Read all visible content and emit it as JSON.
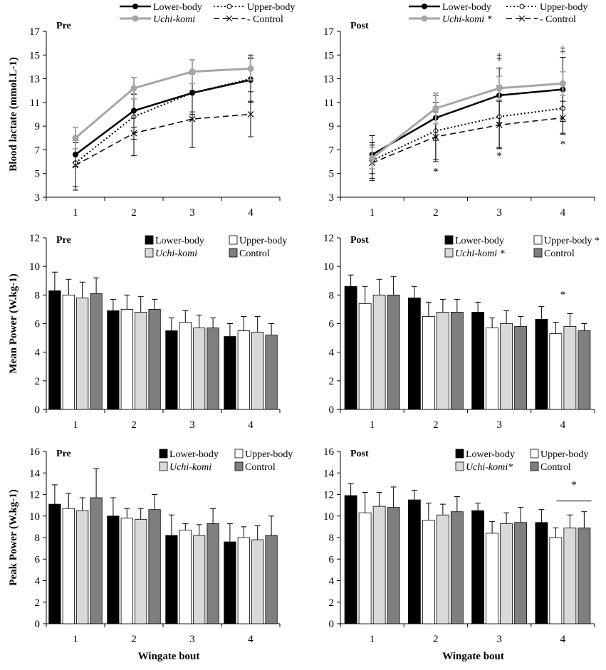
{
  "colors": {
    "lower": "#000000",
    "upper": "#ffffff",
    "uchi": "#d9d9d9",
    "control": "#7f7f7f",
    "uchiLine": "#a6a6a6",
    "axis": "#000000"
  },
  "legend_labels": {
    "lower": "Lower-body",
    "upper": "Upper-body",
    "uchi": "Uchi-komi",
    "control": "Control",
    "control_dash": "- Control",
    "star": "*"
  },
  "chart_data": [
    {
      "type": "line",
      "title": "Pre",
      "ylabel": "Blood lactate (mmol.L-1)",
      "xlabel": "",
      "ylim": [
        3,
        17
      ],
      "yticks": [
        3,
        5,
        7,
        9,
        11,
        13,
        15,
        17
      ],
      "categories": [
        "1",
        "2",
        "3",
        "4"
      ],
      "series": [
        {
          "key": "uchi",
          "name": "Uchi-komi",
          "values": [
            8.0,
            12.2,
            13.6,
            13.85
          ],
          "err": [
            0.9,
            0.9,
            1.0,
            0.95
          ]
        },
        {
          "key": "lower",
          "name": "Lower-body",
          "values": [
            6.6,
            10.3,
            11.8,
            12.9
          ],
          "err": [
            1.0,
            1.4,
            1.6,
            1.8
          ]
        },
        {
          "key": "upper",
          "name": "Upper-body",
          "values": [
            5.9,
            9.8,
            11.8,
            13.0
          ],
          "err": [
            2.0,
            1.9,
            1.8,
            2.0
          ]
        },
        {
          "key": "control",
          "name": "Control",
          "values": [
            5.7,
            8.4,
            9.6,
            10.0
          ],
          "err": [
            2.1,
            1.9,
            2.4,
            1.9
          ]
        }
      ],
      "annotations": []
    },
    {
      "type": "line",
      "title": "Post",
      "ylabel": "",
      "xlabel": "",
      "ylim": [
        3,
        17
      ],
      "yticks": [
        3,
        5,
        7,
        9,
        11,
        13,
        15,
        17
      ],
      "categories": [
        "1",
        "2",
        "3",
        "4"
      ],
      "series": [
        {
          "key": "uchi",
          "name": "Uchi-komi *",
          "values": [
            6.3,
            10.5,
            12.2,
            12.6
          ],
          "err": [
            0.9,
            1.3,
            1.0,
            1.0
          ]
        },
        {
          "key": "lower",
          "name": "Lower-body",
          "values": [
            6.6,
            9.7,
            11.6,
            12.1
          ],
          "err": [
            1.6,
            1.9,
            2.3,
            2.7
          ]
        },
        {
          "key": "upper",
          "name": "Upper-body",
          "values": [
            6.1,
            8.6,
            9.8,
            10.5
          ],
          "err": [
            1.5,
            2.4,
            2.6,
            2.1
          ]
        },
        {
          "key": "control",
          "name": "Control",
          "values": [
            5.9,
            8.1,
            9.1,
            9.7
          ],
          "err": [
            1.5,
            2.1,
            2.0,
            1.4
          ]
        }
      ],
      "annotations": [
        {
          "text": "‡",
          "x": 3,
          "y": 14.6
        },
        {
          "text": "‡",
          "x": 4,
          "y": 15.2
        },
        {
          "text": "*",
          "x": 2,
          "y": 4.9
        },
        {
          "text": "*",
          "x": 3,
          "y": 6.2
        },
        {
          "text": "*",
          "x": 4,
          "y": 7.2
        }
      ]
    },
    {
      "type": "bar",
      "title": "Pre",
      "ylabel": "Mean Power (W.kg-1)",
      "xlabel": "",
      "ylim": [
        0,
        12
      ],
      "yticks": [
        0,
        2,
        4,
        6,
        8,
        10,
        12
      ],
      "categories": [
        "1",
        "2",
        "3",
        "4"
      ],
      "series": [
        {
          "key": "lower",
          "name": "Lower-body",
          "values": [
            8.3,
            6.9,
            5.5,
            5.1
          ],
          "err": [
            1.3,
            0.8,
            0.9,
            0.9
          ]
        },
        {
          "key": "upper",
          "name": "Upper-body",
          "values": [
            8.0,
            7.0,
            6.1,
            5.5
          ],
          "err": [
            1.1,
            1.0,
            0.8,
            1.0
          ]
        },
        {
          "key": "uchi",
          "name": "Uchi-komi",
          "values": [
            7.8,
            6.8,
            5.7,
            5.4
          ],
          "err": [
            1.1,
            1.1,
            0.9,
            1.1
          ]
        },
        {
          "key": "control",
          "name": "Control",
          "values": [
            8.1,
            7.0,
            5.7,
            5.2
          ],
          "err": [
            1.1,
            0.7,
            0.7,
            0.8
          ]
        }
      ],
      "annotations": []
    },
    {
      "type": "bar",
      "title": "Post",
      "ylabel": "",
      "xlabel": "",
      "ylim": [
        0,
        12
      ],
      "yticks": [
        0,
        2,
        4,
        6,
        8,
        10,
        12
      ],
      "categories": [
        "1",
        "2",
        "3",
        "4"
      ],
      "series": [
        {
          "key": "lower",
          "name": "Lower-body",
          "values": [
            8.6,
            7.8,
            6.8,
            6.3
          ],
          "err": [
            0.8,
            0.8,
            0.7,
            0.9
          ]
        },
        {
          "key": "upper",
          "name": "Upper-body *",
          "values": [
            7.4,
            6.5,
            5.7,
            5.3
          ],
          "err": [
            1.2,
            1.0,
            0.7,
            0.8
          ]
        },
        {
          "key": "uchi",
          "name": "Uchi-komi *",
          "values": [
            8.0,
            6.8,
            6.0,
            5.8
          ],
          "err": [
            1.1,
            0.9,
            0.9,
            0.9
          ]
        },
        {
          "key": "control",
          "name": "Control",
          "values": [
            8.0,
            6.8,
            5.8,
            5.5
          ],
          "err": [
            1.3,
            0.9,
            0.7,
            0.5
          ]
        }
      ],
      "annotations": [
        {
          "text": "*",
          "x": 4,
          "y": 7.8
        }
      ]
    },
    {
      "type": "bar",
      "title": "Pre",
      "ylabel": "Peak Power (W.kg-1)",
      "xlabel": "Wingate bout",
      "ylim": [
        0,
        16
      ],
      "yticks": [
        0,
        2,
        4,
        6,
        8,
        10,
        12,
        14,
        16
      ],
      "categories": [
        "1",
        "2",
        "3",
        "4"
      ],
      "series": [
        {
          "key": "lower",
          "name": "Lower-body",
          "values": [
            11.1,
            10.0,
            8.2,
            7.6
          ],
          "err": [
            1.8,
            1.7,
            1.9,
            1.7
          ]
        },
        {
          "key": "upper",
          "name": "Upper-body",
          "values": [
            10.7,
            9.8,
            8.7,
            8.0
          ],
          "err": [
            1.4,
            0.9,
            0.6,
            1.0
          ]
        },
        {
          "key": "uchi",
          "name": "Uchi-komi",
          "values": [
            10.5,
            9.7,
            8.2,
            7.8
          ],
          "err": [
            1.2,
            1.0,
            1.0,
            1.3
          ]
        },
        {
          "key": "control",
          "name": "Control",
          "values": [
            11.7,
            10.6,
            9.3,
            8.2
          ],
          "err": [
            2.7,
            1.4,
            1.4,
            1.8
          ]
        }
      ],
      "annotations": []
    },
    {
      "type": "bar",
      "title": "Post",
      "ylabel": "",
      "xlabel": "Wingate bout",
      "ylim": [
        0,
        16
      ],
      "yticks": [
        0,
        2,
        4,
        6,
        8,
        10,
        12,
        14,
        16
      ],
      "categories": [
        "1",
        "2",
        "3",
        "4"
      ],
      "series": [
        {
          "key": "lower",
          "name": "Lower-body",
          "values": [
            11.9,
            11.5,
            10.5,
            9.4
          ],
          "err": [
            1.1,
            0.9,
            0.7,
            1.2
          ]
        },
        {
          "key": "upper",
          "name": "Upper-body",
          "values": [
            10.3,
            9.6,
            8.4,
            8.0
          ],
          "err": [
            1.9,
            1.6,
            1.1,
            0.9
          ]
        },
        {
          "key": "uchi",
          "name": "Uchi-komi*",
          "values": [
            10.9,
            10.1,
            9.3,
            8.9
          ],
          "err": [
            1.3,
            1.0,
            1.0,
            1.2
          ]
        },
        {
          "key": "control",
          "name": "Control",
          "values": [
            10.8,
            10.4,
            9.4,
            8.9
          ],
          "err": [
            1.9,
            1.4,
            1.4,
            1.5
          ]
        }
      ],
      "annotations": [
        {
          "text": "*",
          "x": 4,
          "y": 12.6,
          "bracket": [
            3.9,
            4.45,
            11.4
          ]
        }
      ]
    }
  ]
}
